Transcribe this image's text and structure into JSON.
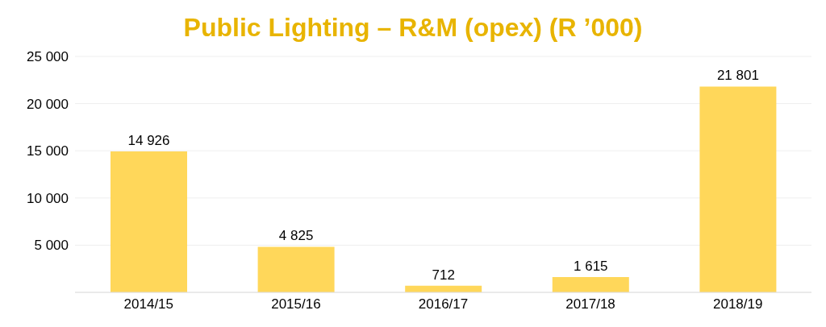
{
  "chart_data": {
    "type": "bar",
    "title": "Public Lighting – R&M (opex) (R ’000)",
    "categories": [
      "2014/15",
      "2015/16",
      "2016/17",
      "2017/18",
      "2018/19"
    ],
    "values": [
      14926,
      4825,
      712,
      1615,
      21801
    ],
    "value_labels": [
      "14 926",
      "4 825",
      "712",
      "1 615",
      "21 801"
    ],
    "color": "#ffd75a",
    "ylim": [
      0,
      25000
    ],
    "yticks": [
      {
        "value": 0,
        "label": null
      },
      {
        "value": 5000,
        "label": "5 000"
      },
      {
        "value": 10000,
        "label": "10 000"
      },
      {
        "value": 15000,
        "label": "15 000"
      },
      {
        "value": 20000,
        "label": "20 000"
      },
      {
        "value": 25000,
        "label": "25 000"
      }
    ],
    "grid": "y"
  }
}
